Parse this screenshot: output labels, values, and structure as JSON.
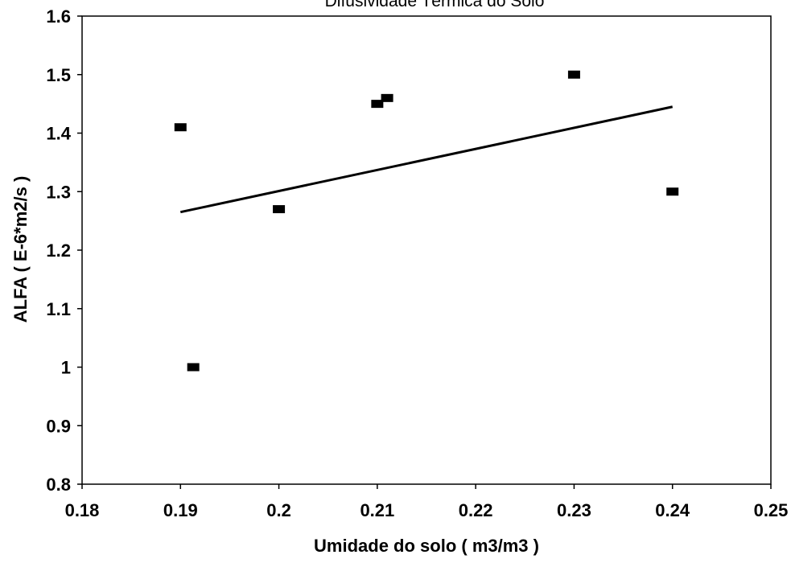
{
  "chart_data": {
    "type": "scatter",
    "title": "Difusividade Térmica do Solo",
    "xlabel": "Umidade do solo ( m3/m3 )",
    "ylabel": "ALFA ( E-6*m2/s )",
    "xlim": [
      0.18,
      0.25
    ],
    "ylim": [
      0.8,
      1.6
    ],
    "x_ticks": [
      "0.18",
      "0.19",
      "0.2",
      "0.21",
      "0.22",
      "0.23",
      "0.24",
      "0.25"
    ],
    "y_ticks": [
      "0.8",
      "0.9",
      "1",
      "1.1",
      "1.2",
      "1.3",
      "1.4",
      "1.5",
      "1.6"
    ],
    "grid": false,
    "points": [
      {
        "x": 0.19,
        "y": 1.41
      },
      {
        "x": 0.1913,
        "y": 1.0
      },
      {
        "x": 0.2,
        "y": 1.27
      },
      {
        "x": 0.21,
        "y": 1.45
      },
      {
        "x": 0.211,
        "y": 1.46
      },
      {
        "x": 0.23,
        "y": 1.5
      },
      {
        "x": 0.24,
        "y": 1.3
      }
    ],
    "trendline": {
      "x": [
        0.19,
        0.24
      ],
      "y": [
        1.265,
        1.445
      ]
    },
    "colors": {
      "marker": "#000000",
      "line": "#000000",
      "axis": "#000000"
    }
  }
}
